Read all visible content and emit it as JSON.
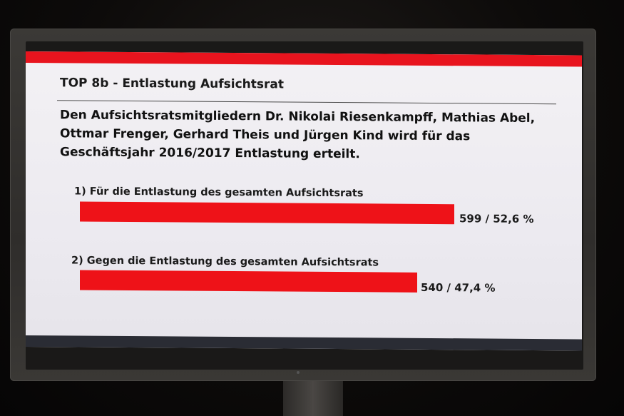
{
  "screen": {
    "heading": "TOP 8b - Entlastung Aufsichtsrat",
    "description": "Den Aufsichtsratsmitgliedern Dr. Nikolai Riesenkampff, Mathias Abel, Ottmar Frenger, Gerhard Theis und Jürgen Kind wird für das Geschäftsjahr 2016/2017 Entlastung erteilt.",
    "options": [
      {
        "label": "1) Für die Entlastung des gesamten Aufsichtsrats",
        "value_text": "599 / 52,6 %",
        "votes": 599,
        "percent": 52.6
      },
      {
        "label": "2) Gegen die Entlastung des gesamten Aufsichtsrats",
        "value_text": "540 / 47,4 %",
        "votes": 540,
        "percent": 47.4
      }
    ],
    "colors": {
      "accent": "#e8141e",
      "bar": "#ee1218",
      "screen_background": "#eceaf0"
    }
  }
}
